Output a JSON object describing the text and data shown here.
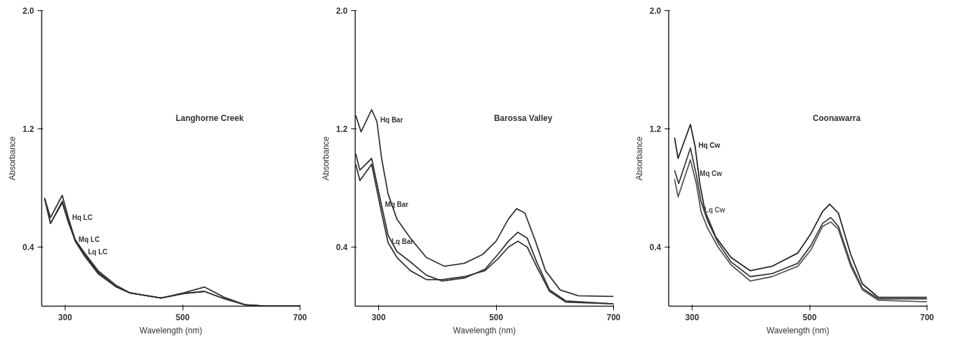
{
  "chart_data": [
    {
      "type": "line",
      "title": "Langhorne Creek",
      "xlabel": "Wavelength (nm)",
      "ylabel": "Absorbance",
      "xlim": [
        260,
        700
      ],
      "ylim": [
        0,
        2.0
      ],
      "xticks": [
        300,
        500,
        700
      ],
      "yticks": [
        {
          "value": 0.4,
          "label": "0.4"
        },
        {
          "value": 1.2,
          "label": "1.2"
        },
        {
          "value": 2.0,
          "label": "2.0"
        }
      ],
      "grid": false,
      "legend": false,
      "marker": "none",
      "line_style": "solid",
      "x": [
        265,
        275,
        295,
        306,
        317,
        333,
        356,
        387,
        410,
        463,
        502,
        537,
        571,
        606,
        641,
        700
      ],
      "series": [
        {
          "name": "Hq LC",
          "color": "#333333",
          "values": [
            0.73,
            0.6,
            0.75,
            0.59,
            0.45,
            0.35,
            0.23,
            0.13,
            0.09,
            0.055,
            0.09,
            0.13,
            0.06,
            0.01,
            0.0,
            0.0
          ]
        },
        {
          "name": "Mq LC",
          "color": "#333333",
          "values": [
            0.73,
            0.56,
            0.71,
            0.57,
            0.44,
            0.34,
            0.22,
            0.13,
            0.09,
            0.055,
            0.085,
            0.1,
            0.05,
            0.01,
            0.0,
            0.0
          ]
        },
        {
          "name": "Lq LC",
          "color": "#333333",
          "values": [
            0.73,
            0.56,
            0.7,
            0.56,
            0.45,
            0.36,
            0.24,
            0.14,
            0.09,
            0.055,
            0.085,
            0.1,
            0.05,
            0.01,
            0.0,
            0.0
          ]
        }
      ]
    },
    {
      "type": "line",
      "title": "Barossa Valley",
      "xlabel": "Wavelength (nm)",
      "ylabel": "Absorbance",
      "xlim": [
        260,
        700
      ],
      "ylim": [
        0,
        2.0
      ],
      "xticks": [
        300,
        500,
        700
      ],
      "yticks": [
        {
          "value": 0.4,
          "label": "0.4"
        },
        {
          "value": 1.2,
          "label": "1.2"
        },
        {
          "value": 2.0,
          "label": "2.0"
        }
      ],
      "grid": false,
      "legend": false,
      "marker": "none",
      "line_style": "solid",
      "series": [
        {
          "name": "Hq Bar",
          "color": "#333333",
          "x": [
            261,
            270,
            288,
            297,
            305,
            316,
            331,
            354,
            381,
            412,
            446,
            477,
            500,
            521,
            535,
            549,
            567,
            584,
            609,
            640,
            700
          ],
          "values": [
            1.29,
            1.18,
            1.33,
            1.25,
            1.0,
            0.76,
            0.59,
            0.46,
            0.33,
            0.27,
            0.29,
            0.35,
            0.44,
            0.59,
            0.66,
            0.63,
            0.44,
            0.24,
            0.11,
            0.07,
            0.066
          ]
        },
        {
          "name": "Mq Bar",
          "color": "#333333",
          "x": [
            261,
            268,
            288,
            305,
            316,
            331,
            354,
            381,
            408,
            446,
            481,
            503,
            521,
            537,
            553,
            570,
            591,
            619,
            700
          ],
          "values": [
            1.03,
            0.92,
            1.0,
            0.68,
            0.48,
            0.37,
            0.3,
            0.21,
            0.17,
            0.19,
            0.25,
            0.35,
            0.44,
            0.5,
            0.46,
            0.29,
            0.11,
            0.035,
            0.016
          ]
        },
        {
          "name": "Lq Bar",
          "color": "#333333",
          "x": [
            261,
            268,
            288,
            305,
            316,
            331,
            354,
            381,
            408,
            446,
            481,
            503,
            521,
            537,
            553,
            570,
            591,
            619,
            700
          ],
          "values": [
            0.96,
            0.85,
            0.96,
            0.63,
            0.43,
            0.33,
            0.24,
            0.18,
            0.18,
            0.2,
            0.24,
            0.32,
            0.4,
            0.44,
            0.4,
            0.26,
            0.1,
            0.027,
            0.016
          ]
        }
      ]
    },
    {
      "type": "line",
      "title": "Coonawarra",
      "xlabel": "Wavelength (nm)",
      "ylabel": "Absorbance",
      "xlim": [
        260,
        700
      ],
      "ylim": [
        0,
        2.0
      ],
      "xticks": [
        300,
        500,
        700
      ],
      "yticks": [
        {
          "value": 0.4,
          "label": "0.4"
        },
        {
          "value": 1.2,
          "label": "1.2"
        },
        {
          "value": 2.0,
          "label": "2.0"
        }
      ],
      "grid": false,
      "legend": false,
      "marker": "none",
      "line_style": "solid",
      "series": [
        {
          "name": "Hq Cw",
          "color": "#222222",
          "x": [
            270,
            276,
            297,
            305,
            313,
            322,
            340,
            366,
            399,
            436,
            480,
            502,
            522,
            534,
            549,
            570,
            590,
            617,
            700
          ],
          "values": [
            1.14,
            1.0,
            1.23,
            1.08,
            0.83,
            0.64,
            0.47,
            0.33,
            0.24,
            0.27,
            0.36,
            0.49,
            0.64,
            0.69,
            0.63,
            0.35,
            0.15,
            0.06,
            0.06
          ]
        },
        {
          "name": "Mq Cw",
          "color": "#3c3c3c",
          "x": [
            270,
            277,
            297,
            307,
            315,
            326,
            344,
            366,
            399,
            436,
            480,
            502,
            522,
            536,
            549,
            570,
            590,
            617,
            700
          ],
          "values": [
            0.92,
            0.83,
            1.07,
            0.89,
            0.71,
            0.58,
            0.43,
            0.3,
            0.2,
            0.22,
            0.29,
            0.41,
            0.56,
            0.6,
            0.54,
            0.29,
            0.12,
            0.05,
            0.05
          ]
        },
        {
          "name": "Lq Cw",
          "color": "#555555",
          "x": [
            270,
            276,
            297,
            307,
            315,
            326,
            344,
            366,
            399,
            436,
            480,
            502,
            522,
            536,
            549,
            570,
            590,
            617,
            700
          ],
          "values": [
            0.86,
            0.74,
            0.99,
            0.83,
            0.64,
            0.53,
            0.4,
            0.28,
            0.17,
            0.2,
            0.27,
            0.38,
            0.54,
            0.57,
            0.52,
            0.27,
            0.11,
            0.04,
            0.03
          ]
        }
      ]
    }
  ]
}
